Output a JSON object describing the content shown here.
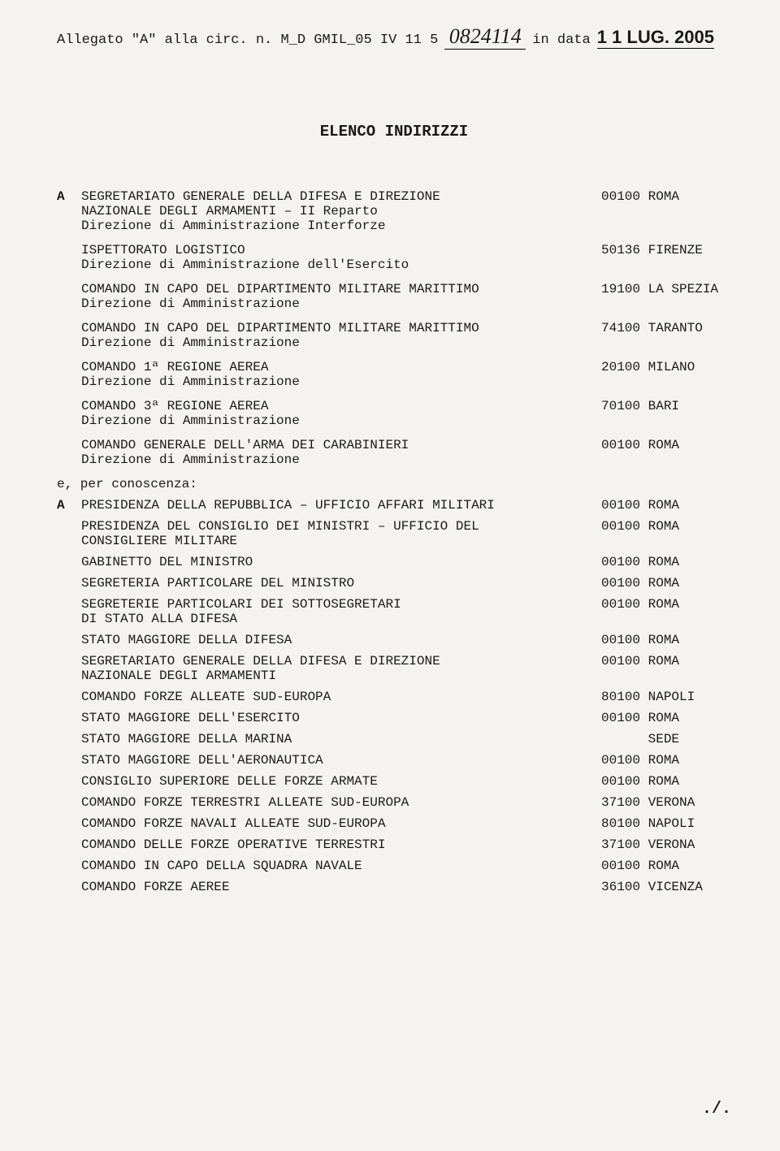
{
  "header": {
    "prefix": "Allegato \"A\" alla circ. n. M_D GMIL_05 IV 11 5",
    "signature": "0824114",
    "in_data": "in data",
    "date": "1 1 LUG. 2005"
  },
  "title": "ELENCO INDIRIZZI",
  "markerA": "A",
  "sectionA": [
    {
      "lines": [
        "SEGRETARIATO GENERALE DELLA DIFESA E DIREZIONE",
        "NAZIONALE DEGLI ARMAMENTI – II Reparto",
        "Direzione di Amministrazione Interforze"
      ],
      "code": "00100 ROMA"
    },
    {
      "lines": [
        "ISPETTORATO LOGISTICO",
        "Direzione di Amministrazione dell'Esercito"
      ],
      "code": "50136 FIRENZE"
    },
    {
      "lines": [
        "COMANDO IN CAPO DEL DIPARTIMENTO MILITARE MARITTIMO",
        "Direzione di Amministrazione"
      ],
      "code": "19100 LA SPEZIA"
    },
    {
      "lines": [
        "COMANDO IN CAPO DEL DIPARTIMENTO MILITARE MARITTIMO",
        "Direzione di Amministrazione"
      ],
      "code": "74100 TARANTO"
    },
    {
      "lines": [
        "COMANDO 1ª REGIONE AEREA",
        "Direzione di Amministrazione"
      ],
      "code": "20100 MILANO"
    },
    {
      "lines": [
        "COMANDO 3ª REGIONE AEREA",
        "Direzione di Amministrazione"
      ],
      "code": "70100 BARI"
    },
    {
      "lines": [
        "COMANDO GENERALE DELL'ARMA DEI CARABINIERI",
        "Direzione di Amministrazione"
      ],
      "code": "00100 ROMA"
    }
  ],
  "perConoscenza": "e, per conoscenza:",
  "markerA2": "A",
  "sectionB": [
    {
      "lines": [
        "PRESIDENZA DELLA REPUBBLICA – UFFICIO AFFARI MILITARI"
      ],
      "code": "00100 ROMA"
    },
    {
      "lines": [
        "PRESIDENZA DEL CONSIGLIO DEI MINISTRI – UFFICIO DEL",
        "CONSIGLIERE MILITARE"
      ],
      "code": "00100 ROMA"
    },
    {
      "lines": [
        "GABINETTO DEL MINISTRO"
      ],
      "code": "00100 ROMA"
    },
    {
      "lines": [
        "SEGRETERIA PARTICOLARE DEL MINISTRO"
      ],
      "code": "00100 ROMA"
    },
    {
      "lines": [
        "SEGRETERIE PARTICOLARI DEI SOTTOSEGRETARI",
        "DI STATO ALLA DIFESA"
      ],
      "code": "00100 ROMA"
    },
    {
      "lines": [
        "STATO MAGGIORE DELLA DIFESA"
      ],
      "code": "00100 ROMA"
    },
    {
      "lines": [
        "SEGRETARIATO GENERALE DELLA DIFESA E DIREZIONE",
        "NAZIONALE DEGLI ARMAMENTI"
      ],
      "code": "00100 ROMA"
    },
    {
      "lines": [
        "COMANDO FORZE ALLEATE SUD-EUROPA"
      ],
      "code": "80100 NAPOLI"
    },
    {
      "lines": [
        "STATO MAGGIORE DELL'ESERCITO"
      ],
      "code": "00100 ROMA"
    },
    {
      "lines": [
        "STATO MAGGIORE DELLA MARINA"
      ],
      "code": "      SEDE"
    },
    {
      "lines": [
        "STATO MAGGIORE DELL'AERONAUTICA"
      ],
      "code": "00100 ROMA"
    },
    {
      "lines": [
        "CONSIGLIO SUPERIORE DELLE FORZE ARMATE"
      ],
      "code": "00100 ROMA"
    },
    {
      "lines": [
        "COMANDO FORZE TERRESTRI ALLEATE SUD-EUROPA"
      ],
      "code": "37100 VERONA"
    },
    {
      "lines": [
        "COMANDO FORZE NAVALI ALLEATE SUD-EUROPA"
      ],
      "code": "80100 NAPOLI"
    },
    {
      "lines": [
        "COMANDO DELLE FORZE OPERATIVE TERRESTRI"
      ],
      "code": "37100 VERONA"
    },
    {
      "lines": [
        "COMANDO IN CAPO DELLA SQUADRA NAVALE"
      ],
      "code": "00100 ROMA"
    },
    {
      "lines": [
        "COMANDO FORZE AEREE"
      ],
      "code": "36100 VICENZA"
    }
  ],
  "footer": "./."
}
